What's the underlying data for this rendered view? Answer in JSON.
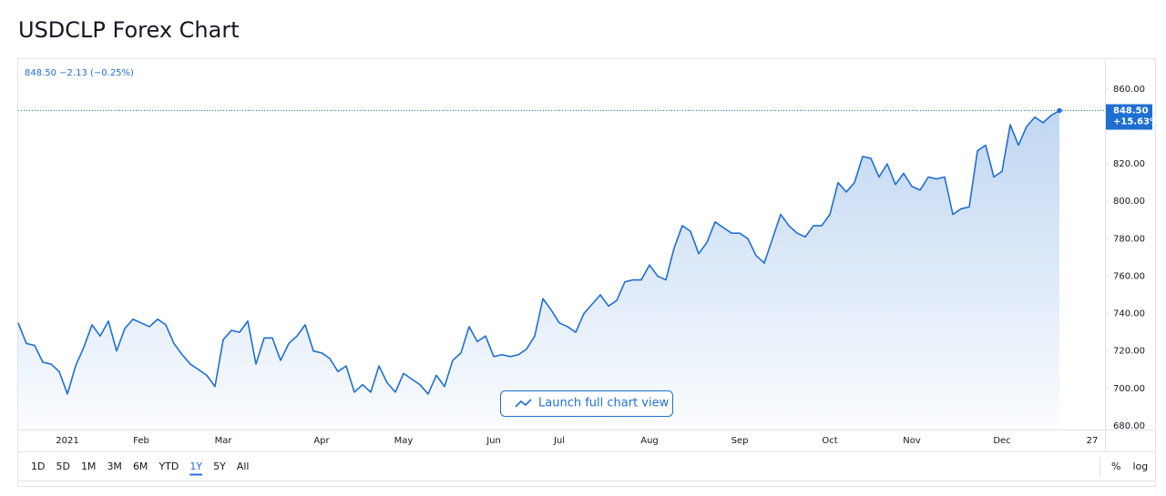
{
  "title": "USDCLP Forex Chart",
  "chart_data": {
    "type": "area-line",
    "quote": "848.50 −2.13 (−0.25%)",
    "last_label": "848.50",
    "change_label": "+15.63%",
    "launch_button": "Launch full chart view",
    "color": "#1f6fd1",
    "categories": [
      null,
      null,
      null,
      null,
      null,
      null,
      "2021",
      null,
      null,
      null,
      null,
      null,
      null,
      null,
      null,
      "Feb",
      null,
      null,
      null,
      null,
      null,
      null,
      null,
      null,
      null,
      "Mar",
      null,
      null,
      null,
      null,
      null,
      null,
      null,
      null,
      null,
      null,
      null,
      "Apr",
      null,
      null,
      null,
      null,
      null,
      null,
      null,
      null,
      null,
      "May",
      null,
      null,
      null,
      null,
      null,
      null,
      null,
      null,
      null,
      null,
      "Jun",
      null,
      null,
      null,
      null,
      null,
      null,
      null,
      "Jul",
      null,
      null,
      null,
      null,
      null,
      null,
      null,
      null,
      null,
      null,
      "Aug",
      null,
      null,
      null,
      null,
      null,
      null,
      null,
      null,
      null,
      null,
      "Sep",
      null,
      null,
      null,
      null,
      null,
      null,
      null,
      null,
      null,
      null,
      "Oct",
      null,
      null,
      null,
      null,
      null,
      null,
      null,
      null,
      null,
      "Nov",
      null,
      null,
      null,
      null,
      null,
      null,
      null,
      null,
      null,
      null,
      "Dec",
      null,
      null,
      null,
      null,
      null,
      null,
      null,
      null,
      null,
      null,
      "27"
    ],
    "values": [
      735,
      724,
      723,
      714,
      713,
      709,
      697,
      712,
      722,
      734,
      728,
      736,
      720,
      732,
      737,
      735,
      733,
      737,
      734,
      724,
      718,
      713,
      710,
      707,
      701,
      726,
      731,
      730,
      736,
      713,
      727,
      727,
      715,
      724,
      728,
      734,
      720,
      719,
      716,
      709,
      712,
      698,
      702,
      698,
      712,
      703,
      698,
      708,
      705,
      702,
      697,
      707,
      701,
      715,
      719,
      733,
      725,
      728,
      717,
      718,
      717,
      718,
      721,
      728,
      748,
      742,
      735,
      733,
      730,
      740,
      745,
      750,
      744,
      747,
      757,
      758,
      758,
      766,
      760,
      758,
      775,
      787,
      784,
      772,
      778,
      789,
      786,
      783,
      783,
      780,
      771,
      767,
      780,
      793,
      787,
      783,
      781,
      787,
      787,
      793,
      810,
      805,
      810,
      824,
      823,
      813,
      820,
      809,
      815,
      808,
      806,
      813,
      812,
      813,
      793,
      796,
      797,
      827,
      830,
      813,
      816,
      841,
      830,
      840,
      845,
      842,
      846,
      848.5,
      null,
      null,
      null,
      null
    ],
    "ylim": [
      678,
      876
    ],
    "yticks": [
      {
        "value": 680,
        "label": "680.00"
      },
      {
        "value": 700,
        "label": "700.00"
      },
      {
        "value": 720,
        "label": "720.00"
      },
      {
        "value": 740,
        "label": "740.00"
      },
      {
        "value": 760,
        "label": "760.00"
      },
      {
        "value": 780,
        "label": "780.00"
      },
      {
        "value": 800,
        "label": "800.00"
      },
      {
        "value": 820,
        "label": "820.00"
      },
      {
        "value": 840,
        "label": "840.00"
      },
      {
        "value": 860,
        "label": "860.00"
      }
    ],
    "grid": false,
    "ranges": [
      "1D",
      "5D",
      "1M",
      "3M",
      "6M",
      "YTD",
      "1Y",
      "5Y",
      "All"
    ],
    "active_range": 6,
    "scale_options": [
      "%",
      "log"
    ]
  }
}
